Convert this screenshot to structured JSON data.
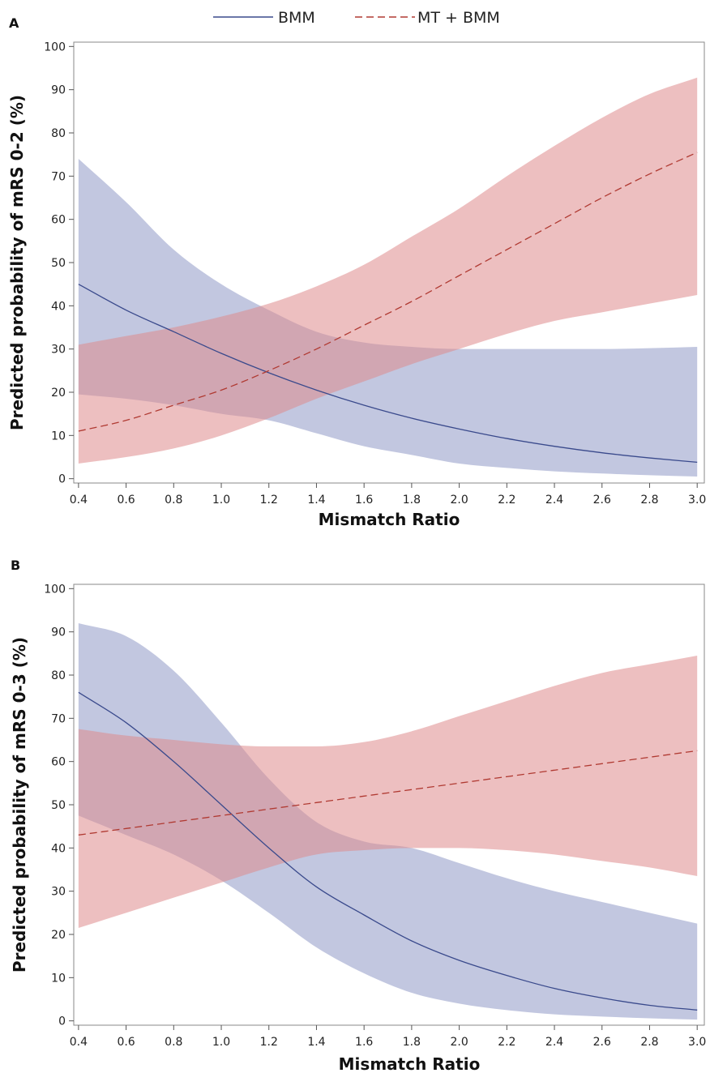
{
  "legend": {
    "items": [
      {
        "label": "BMM",
        "color": "#3a4a8c",
        "dash": "solid"
      },
      {
        "label": "MT + BMM",
        "color": "#b03a32",
        "dash": "dashed"
      }
    ]
  },
  "colors": {
    "bmm_line": "#3a4a8c",
    "bmm_band": "#8f99c6",
    "mt_line": "#b03a32",
    "mt_band": "#de8a8d"
  },
  "chart_data": [
    {
      "type": "line",
      "panel_label": "A",
      "xlabel": "Mismatch Ratio",
      "ylabel": "Predicted probability of mRS 0-2 (%)",
      "xlim": [
        0.38,
        3.03
      ],
      "ylim": [
        -1,
        101
      ],
      "x_ticks": [
        "0.4",
        "0.6",
        "0.8",
        "1.0",
        "1.2",
        "1.4",
        "1.6",
        "1.8",
        "2.0",
        "2.2",
        "2.4",
        "2.6",
        "2.8",
        "3.0"
      ],
      "y_ticks": [
        "0",
        "10",
        "20",
        "30",
        "40",
        "50",
        "60",
        "70",
        "80",
        "90",
        "100"
      ],
      "grid": false,
      "legend_position": "top",
      "series": [
        {
          "name": "BMM",
          "x": [
            0.4,
            0.6,
            0.8,
            1.0,
            1.2,
            1.4,
            1.6,
            1.8,
            2.0,
            2.2,
            2.4,
            2.6,
            2.8,
            3.0
          ],
          "y": [
            45,
            39,
            34,
            29,
            24.5,
            20.5,
            17,
            14,
            11.5,
            9.3,
            7.5,
            6,
            4.8,
            3.8
          ],
          "lower": [
            19.5,
            18.5,
            17,
            15,
            13.5,
            10.5,
            7.5,
            5.5,
            3.5,
            2.5,
            1.7,
            1.2,
            0.8,
            0.5
          ],
          "upper": [
            74,
            64,
            53,
            45,
            39,
            34,
            31.5,
            30.5,
            30,
            30,
            30,
            30,
            30.2,
            30.5
          ]
        },
        {
          "name": "MT + BMM",
          "x": [
            0.4,
            0.6,
            0.8,
            1.0,
            1.2,
            1.4,
            1.6,
            1.8,
            2.0,
            2.2,
            2.4,
            2.6,
            2.8,
            3.0
          ],
          "y": [
            11,
            13.5,
            17,
            20.5,
            25,
            30,
            35.5,
            41,
            47,
            53,
            59,
            65,
            70.5,
            75.5
          ],
          "lower": [
            3.5,
            5,
            7,
            10,
            14,
            18.5,
            22.5,
            26.5,
            30,
            33.5,
            36.5,
            38.5,
            40.5,
            42.5
          ],
          "upper": [
            31,
            33,
            35,
            37.5,
            40.5,
            44.5,
            49.5,
            56,
            62.5,
            70,
            77,
            83.5,
            89,
            92.8
          ]
        }
      ]
    },
    {
      "type": "line",
      "panel_label": "B",
      "xlabel": "Mismatch Ratio",
      "ylabel": "Predicted probability of mRS 0-3 (%)",
      "xlim": [
        0.38,
        3.03
      ],
      "ylim": [
        -1,
        101
      ],
      "x_ticks": [
        "0.4",
        "0.6",
        "0.8",
        "1.0",
        "1.2",
        "1.4",
        "1.6",
        "1.8",
        "2.0",
        "2.2",
        "2.4",
        "2.6",
        "2.8",
        "3.0"
      ],
      "y_ticks": [
        "0",
        "10",
        "20",
        "30",
        "40",
        "50",
        "60",
        "70",
        "80",
        "90",
        "100"
      ],
      "grid": false,
      "legend_position": "top",
      "series": [
        {
          "name": "BMM",
          "x": [
            0.4,
            0.6,
            0.8,
            1.0,
            1.2,
            1.4,
            1.6,
            1.8,
            2.0,
            2.2,
            2.4,
            2.6,
            2.8,
            3.0
          ],
          "y": [
            76,
            69,
            60,
            50,
            40,
            31,
            24.5,
            18.5,
            14,
            10.5,
            7.5,
            5.3,
            3.6,
            2.5
          ],
          "lower": [
            47.5,
            43,
            38.5,
            32.5,
            25,
            17,
            11,
            6.5,
            4,
            2.5,
            1.5,
            1,
            0.6,
            0.3
          ],
          "upper": [
            92,
            89,
            81,
            69,
            56,
            46,
            41.5,
            40,
            36.5,
            33,
            30,
            27.5,
            25,
            22.5
          ]
        },
        {
          "name": "MT + BMM",
          "x": [
            0.4,
            0.6,
            0.8,
            1.0,
            1.2,
            1.4,
            1.6,
            1.8,
            2.0,
            2.2,
            2.4,
            2.6,
            2.8,
            3.0
          ],
          "y": [
            43,
            44.5,
            46,
            47.5,
            49,
            50.5,
            52,
            53.5,
            55,
            56.5,
            58,
            59.5,
            61,
            62.5
          ],
          "lower": [
            21.5,
            25,
            28.5,
            32,
            35.5,
            38.5,
            39.5,
            40,
            40,
            39.5,
            38.5,
            37,
            35.5,
            33.5
          ],
          "upper": [
            67.5,
            66,
            65,
            64,
            63.5,
            63.5,
            64.5,
            67,
            70.5,
            74,
            77.5,
            80.5,
            82.5,
            84.5
          ]
        }
      ]
    }
  ]
}
